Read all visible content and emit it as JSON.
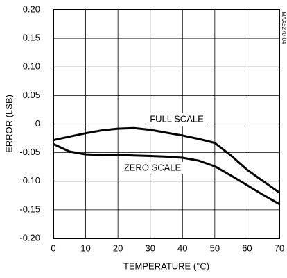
{
  "chart_data": {
    "type": "line",
    "xlabel": "TEMPERATURE (°C)",
    "ylabel": "ERROR (LSB)",
    "side_note": "MAX5270-04",
    "x": [
      0,
      5,
      10,
      15,
      20,
      25,
      30,
      35,
      40,
      45,
      50,
      55,
      60,
      65,
      70
    ],
    "series": [
      {
        "name": "FULL SCALE",
        "color": "#000000",
        "values": [
          -0.028,
          -0.022,
          -0.016,
          -0.011,
          -0.008,
          -0.007,
          -0.01,
          -0.015,
          -0.02,
          -0.026,
          -0.033,
          -0.055,
          -0.08,
          -0.1,
          -0.12
        ]
      },
      {
        "name": "ZERO SCALE",
        "color": "#000000",
        "values": [
          -0.035,
          -0.048,
          -0.053,
          -0.054,
          -0.054,
          -0.055,
          -0.056,
          -0.057,
          -0.059,
          -0.064,
          -0.074,
          -0.09,
          -0.107,
          -0.124,
          -0.14
        ]
      }
    ],
    "xlim": [
      0,
      70
    ],
    "xticks": [
      0,
      10,
      20,
      30,
      40,
      50,
      60,
      70
    ],
    "ylim": [
      -0.2,
      0.2
    ],
    "yticks": [
      {
        "value": 0.2,
        "label": "0.20"
      },
      0.15,
      {
        "value": 0.1,
        "label": "0.10"
      },
      0.05,
      0,
      -0.05,
      {
        "value": -0.1,
        "label": "-0.10"
      },
      -0.15,
      {
        "value": -0.2,
        "label": "-0.20"
      }
    ],
    "grid": true
  }
}
